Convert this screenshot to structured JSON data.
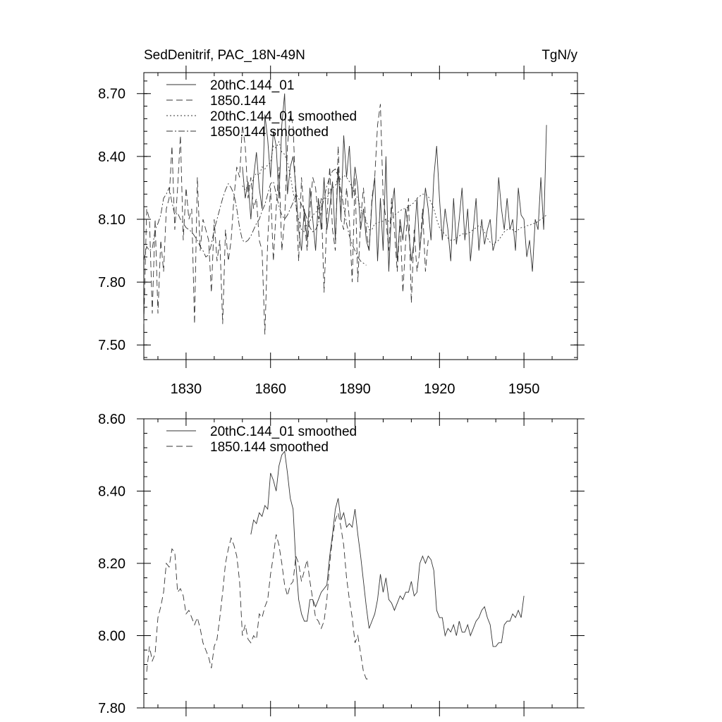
{
  "chart_data": [
    {
      "type": "line",
      "title": "SedDenitrif, PAC_18N-49N",
      "units": "TgN/y",
      "xlim": [
        1815,
        1969
      ],
      "ylim": [
        7.43,
        8.8
      ],
      "xticks": [
        1830,
        1860,
        1890,
        1920,
        1950
      ],
      "xtick_labels": [
        "1830",
        "1860",
        "1890",
        "1920",
        "1950"
      ],
      "yticks": [
        7.5,
        7.8,
        8.1,
        8.4,
        8.7
      ],
      "ytick_labels": [
        "7.50",
        "7.80",
        "8.10",
        "8.40",
        "8.70"
      ],
      "legend_position": "top-left",
      "series": [
        {
          "name": "20thC.144_01",
          "style": "solid",
          "x_start": 1850,
          "values": [
            8.35,
            8.2,
            8.28,
            8.1,
            8.3,
            8.42,
            8.25,
            8.15,
            8.6,
            8.48,
            8.3,
            8.52,
            8.45,
            8.2,
            8.55,
            8.7,
            8.22,
            8.35,
            8.4,
            8.25,
            8.05,
            7.95,
            8.15,
            8.0,
            8.25,
            8.1,
            7.95,
            8.2,
            8.05,
            8.3,
            8.05,
            8.15,
            8.28,
            8.0,
            8.35,
            8.1,
            8.5,
            8.3,
            8.45,
            8.2,
            8.35,
            8.25,
            8.05,
            8.15,
            8.0,
            7.95,
            8.18,
            8.3,
            7.9,
            8.2,
            7.95,
            8.4,
            7.85,
            8.15,
            8.25,
            7.9,
            8.1,
            8.0,
            8.15,
            8.05,
            7.9,
            8.0,
            8.2,
            7.95,
            8.1,
            8.25,
            8.15,
            8.0,
            8.3,
            8.45,
            8.2,
            8.0,
            8.15,
            8.05,
            7.9,
            8.2,
            7.98,
            8.1,
            8.25,
            8.0,
            8.15,
            7.9,
            8.05,
            8.2,
            7.95,
            8.1,
            7.98,
            8.05,
            8.1,
            7.95,
            8.0,
            8.3,
            8.15,
            8.05,
            8.2,
            8.05,
            8.1,
            7.95,
            8.25,
            8.12,
            8.1,
            7.92,
            8.0,
            7.85,
            8.1,
            8.05,
            8.3,
            8.05,
            8.55
          ]
        },
        {
          "name": "1850.144",
          "style": "dashed",
          "x_start": 1815,
          "values": [
            7.6,
            8.15,
            8.1,
            7.65,
            8.1,
            7.65,
            8.0,
            7.85,
            8.15,
            8.2,
            8.45,
            8.05,
            8.25,
            8.5,
            8.0,
            8.25,
            8.1,
            8.15,
            7.6,
            8.3,
            7.95,
            8.1,
            8.05,
            8.0,
            7.75,
            8.1,
            7.9,
            8.0,
            7.6,
            8.05,
            7.9,
            8.0,
            8.2,
            8.35,
            8.3,
            8.55,
            8.45,
            8.2,
            8.3,
            8.15,
            8.2,
            8.0,
            7.95,
            7.55,
            8.0,
            8.25,
            7.9,
            8.15,
            8.35,
            7.95,
            8.1,
            8.45,
            8.6,
            8.55,
            8.2,
            7.9,
            8.3,
            8.1,
            7.95,
            8.15,
            8.3,
            8.25,
            8.1,
            8.2,
            7.75,
            8.1,
            8.35,
            8.05,
            7.95,
            8.45,
            8.1,
            8.05,
            8.25,
            8.1,
            7.8,
            8.3,
            7.8,
            8.1,
            8.25,
            8.05,
            7.95,
            8.2,
            8.3,
            8.55,
            8.65,
            8.2,
            8.1,
            7.95,
            8.2,
            8.05,
            7.85,
            8.1,
            7.75,
            8.0,
            8.2,
            7.7,
            8.05,
            7.85,
            7.95,
            8.15,
            7.85,
            8.0
          ]
        },
        {
          "name": "20thC.144_01 smoothed",
          "style": "dotted",
          "x_start": 1850,
          "values": [
            8.26,
            8.24,
            8.26,
            8.26,
            8.3,
            8.32,
            8.31,
            8.35,
            8.34,
            8.36,
            8.37,
            8.45,
            8.44,
            8.47,
            8.42,
            8.41,
            8.37,
            8.31,
            8.23,
            8.17,
            8.1,
            8.05,
            8.04,
            8.08,
            8.09,
            8.12,
            8.13,
            8.15,
            8.19,
            8.2,
            8.2,
            8.23,
            8.25,
            8.26,
            8.3,
            8.29,
            8.31,
            8.3,
            8.28,
            8.25,
            8.22,
            8.2,
            8.15,
            8.12,
            8.09,
            8.05,
            8.05,
            8.08,
            8.08,
            8.09,
            8.09,
            8.1,
            8.09,
            8.1,
            8.12,
            8.13,
            8.14,
            8.15,
            8.15,
            8.16,
            8.17,
            8.18,
            8.2,
            8.21,
            8.22,
            8.22,
            8.21,
            8.18,
            8.15,
            8.1,
            8.06,
            8.04,
            8.03,
            8.01,
            8.0,
            8.0,
            8.01,
            8.02,
            8.03,
            8.03,
            8.03,
            8.04,
            8.05,
            8.06,
            8.07,
            8.06,
            8.04,
            8.01,
            7.99,
            7.98,
            7.99,
            8.0,
            8.02,
            8.04,
            8.05,
            8.06,
            8.05,
            8.04,
            8.05,
            8.06,
            8.06,
            8.07,
            8.07,
            8.08,
            8.08,
            8.09,
            8.1,
            8.11,
            8.12
          ]
        },
        {
          "name": "1850.144 smoothed",
          "style": "dash-dot",
          "x_start": 1815,
          "values": [
            7.9,
            7.97,
            7.95,
            7.96,
            8.05,
            8.08,
            8.12,
            8.2,
            8.22,
            8.25,
            8.18,
            8.12,
            8.13,
            8.1,
            8.08,
            8.06,
            8.05,
            8.04,
            8.02,
            8.0,
            7.97,
            7.95,
            7.92,
            7.93,
            7.98,
            8.05,
            8.1,
            8.15,
            8.2,
            8.24,
            8.27,
            8.25,
            8.22,
            8.15,
            8.06,
            8.0,
            7.99,
            8.0,
            8.02,
            8.05,
            8.08,
            8.1,
            8.14,
            8.17,
            8.22,
            8.27,
            8.28,
            8.22,
            8.16,
            8.12,
            8.1,
            8.12,
            8.15,
            8.18,
            8.22,
            8.2,
            8.17,
            8.14,
            8.1,
            8.06,
            8.04,
            8.05,
            8.08,
            8.14,
            8.2,
            8.26,
            8.3,
            8.33,
            8.34,
            8.3,
            8.24,
            8.16,
            8.08,
            8.02,
            7.98,
            7.95,
            7.92,
            7.9,
            7.89,
            7.88
          ]
        }
      ]
    },
    {
      "type": "line",
      "xlim": [
        1815,
        1969
      ],
      "ylim": [
        7.8,
        8.6
      ],
      "xticks": [
        1830,
        1860,
        1890,
        1920,
        1950
      ],
      "yticks": [
        7.8,
        8.0,
        8.2,
        8.4,
        8.6
      ],
      "ytick_labels": [
        "7.80",
        "8.00",
        "8.20",
        "8.40",
        "8.60"
      ],
      "legend_position": "top-left",
      "series": [
        {
          "name": "20thC.144_01 smoothed",
          "style": "solid",
          "x_start": 1853,
          "values": [
            8.28,
            8.32,
            8.31,
            8.34,
            8.33,
            8.36,
            8.35,
            8.45,
            8.43,
            8.4,
            8.47,
            8.5,
            8.51,
            8.45,
            8.38,
            8.35,
            8.2,
            8.1,
            8.06,
            8.04,
            8.04,
            8.1,
            8.1,
            8.08,
            8.1,
            8.12,
            8.13,
            8.14,
            8.22,
            8.28,
            8.35,
            8.38,
            8.32,
            8.34,
            8.3,
            8.31,
            8.3,
            8.35,
            8.28,
            8.22,
            8.15,
            8.08,
            8.02,
            8.04,
            8.06,
            8.1,
            8.17,
            8.12,
            8.16,
            8.1,
            8.09,
            8.07,
            8.09,
            8.11,
            8.1,
            8.12,
            8.12,
            8.15,
            8.11,
            8.12,
            8.2,
            8.22,
            8.2,
            8.22,
            8.21,
            8.18,
            8.07,
            8.05,
            8.05,
            8.0,
            8.02,
            8.01,
            8.03,
            8.0,
            8.04,
            8.01,
            8.01,
            8.03,
            8.0,
            8.02,
            8.04,
            8.05,
            8.07,
            8.08,
            8.05,
            8.03,
            7.97,
            7.97,
            7.98,
            7.98,
            8.03,
            8.04,
            8.04,
            8.06,
            8.05,
            8.07,
            8.05,
            8.11
          ]
        },
        {
          "name": "1850.144 smoothed",
          "style": "dashed",
          "x_start": 1816,
          "values": [
            7.9,
            7.97,
            7.93,
            7.95,
            8.05,
            8.08,
            8.12,
            8.2,
            8.19,
            8.24,
            8.23,
            8.12,
            8.13,
            8.11,
            8.06,
            8.07,
            8.05,
            8.03,
            8.05,
            8.02,
            7.98,
            7.96,
            7.94,
            7.91,
            7.97,
            7.99,
            8.05,
            8.12,
            8.2,
            8.24,
            8.27,
            8.25,
            8.22,
            8.15,
            8.0,
            8.03,
            7.99,
            7.98,
            8.0,
            7.99,
            8.06,
            8.05,
            8.08,
            8.1,
            8.17,
            8.22,
            8.28,
            8.25,
            8.2,
            8.14,
            8.11,
            8.14,
            8.15,
            8.22,
            8.2,
            8.15,
            8.18,
            8.21,
            8.15,
            8.1,
            8.05,
            8.04,
            8.02,
            8.04,
            8.1,
            8.2,
            8.27,
            8.32,
            8.34,
            8.3,
            8.25,
            8.16,
            8.1,
            8.05,
            7.98,
            8.0,
            7.95,
            7.9,
            7.88,
            7.88
          ]
        }
      ]
    }
  ]
}
